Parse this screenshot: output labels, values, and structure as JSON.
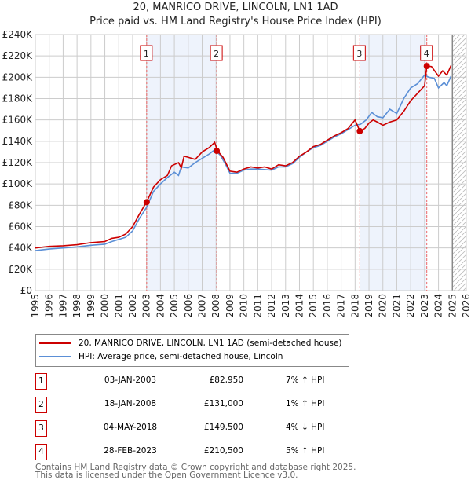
{
  "chart_data": {
    "type": "line",
    "title": "20, MANRICO DRIVE, LINCOLN, LN1 1AD",
    "subtitle": "Price paid vs. HM Land Registry's House Price Index (HPI)",
    "xlim": [
      1995,
      2026
    ],
    "ylim": [
      0,
      240000
    ],
    "x_ticks": [
      "1995",
      "1996",
      "1997",
      "1998",
      "1999",
      "2000",
      "2001",
      "2002",
      "2003",
      "2004",
      "2005",
      "2006",
      "2007",
      "2008",
      "2009",
      "2010",
      "2011",
      "2012",
      "2013",
      "2014",
      "2015",
      "2016",
      "2017",
      "2018",
      "2019",
      "2020",
      "2021",
      "2022",
      "2023",
      "2024",
      "2025",
      "2026"
    ],
    "y_ticks": [
      {
        "v": 0,
        "label": "£0"
      },
      {
        "v": 20000,
        "label": "£20K"
      },
      {
        "v": 40000,
        "label": "£40K"
      },
      {
        "v": 60000,
        "label": "£60K"
      },
      {
        "v": 80000,
        "label": "£80K"
      },
      {
        "v": 100000,
        "label": "£100K"
      },
      {
        "v": 120000,
        "label": "£120K"
      },
      {
        "v": 140000,
        "label": "£140K"
      },
      {
        "v": 160000,
        "label": "£160K"
      },
      {
        "v": 180000,
        "label": "£180K"
      },
      {
        "v": 200000,
        "label": "£200K"
      },
      {
        "v": 220000,
        "label": "£220K"
      },
      {
        "v": 240000,
        "label": "£240K"
      }
    ],
    "grid": true,
    "shaded_ranges": [
      [
        2003.01,
        2008.05
      ],
      [
        2018.34,
        2023.16
      ]
    ],
    "forecast_hatch_from": 2025,
    "series": [
      {
        "name": "20, MANRICO DRIVE, LINCOLN, LN1 1AD (semi-detached house)",
        "color": "#cc0000",
        "x": [
          1995,
          1996,
          1997,
          1998,
          1999,
          2000,
          2000.5,
          2001,
          2001.5,
          2002,
          2002.5,
          2003,
          2003.5,
          2004,
          2004.5,
          2004.8,
          2005.3,
          2005.5,
          2005.7,
          2006,
          2006.5,
          2007,
          2007.5,
          2007.9,
          2008.1,
          2008.5,
          2009,
          2009.5,
          2010,
          2010.5,
          2011,
          2011.5,
          2012,
          2012.5,
          2013,
          2013.5,
          2014,
          2014.5,
          2015,
          2015.5,
          2016,
          2016.5,
          2017,
          2017.5,
          2018,
          2018.34,
          2018.7,
          2019,
          2019.3,
          2019.6,
          2020,
          2020.5,
          2021,
          2021.5,
          2022,
          2022.5,
          2023,
          2023.16,
          2023.5,
          2024,
          2024.3,
          2024.6,
          2024.9
        ],
        "y": [
          40000,
          41500,
          42000,
          43000,
          45000,
          46000,
          49000,
          50000,
          53000,
          60000,
          72000,
          83000,
          97000,
          104000,
          108000,
          117000,
          120000,
          115000,
          126000,
          125000,
          123000,
          130000,
          134000,
          139000,
          131000,
          125000,
          112000,
          111000,
          114000,
          116000,
          115000,
          116000,
          114000,
          118000,
          117000,
          120000,
          126000,
          130000,
          135000,
          137000,
          141000,
          145000,
          148000,
          152000,
          160000,
          149500,
          152000,
          157000,
          160000,
          158000,
          155000,
          158000,
          160000,
          168000,
          178000,
          185000,
          192000,
          210500,
          210000,
          201000,
          206000,
          202000,
          211000
        ]
      },
      {
        "name": "HPI: Average price, semi-detached house, Lincoln",
        "color": "#5b8fd6",
        "x": [
          1995,
          1996,
          1997,
          1998,
          1999,
          2000,
          2000.5,
          2001,
          2001.5,
          2002,
          2002.5,
          2003,
          2003.5,
          2004,
          2004.5,
          2005,
          2005.3,
          2005.5,
          2006,
          2006.5,
          2007,
          2007.5,
          2007.9,
          2008.3,
          2008.7,
          2009,
          2009.5,
          2010,
          2010.5,
          2011,
          2012,
          2012.5,
          2013,
          2013.5,
          2014,
          2014.5,
          2015,
          2015.5,
          2016,
          2016.5,
          2017,
          2017.5,
          2018,
          2018.4,
          2018.8,
          2019.2,
          2019.6,
          2020,
          2020.5,
          2021,
          2021.5,
          2022,
          2022.5,
          2023,
          2023.3,
          2023.7,
          2024,
          2024.4,
          2024.6,
          2024.9
        ],
        "y": [
          37500,
          39000,
          40000,
          41000,
          42500,
          43500,
          46000,
          48000,
          50000,
          56000,
          68000,
          78000,
          93000,
          100000,
          106000,
          111000,
          108000,
          116000,
          115000,
          120000,
          124000,
          128000,
          132000,
          127000,
          118000,
          110000,
          110000,
          113000,
          114000,
          114000,
          113000,
          116000,
          116000,
          119000,
          125000,
          130000,
          134000,
          136000,
          140000,
          144000,
          147000,
          151000,
          155000,
          156000,
          160000,
          167000,
          163000,
          162000,
          170000,
          166000,
          180000,
          190000,
          194000,
          202000,
          200000,
          199000,
          190000,
          195000,
          192000,
          201000
        ]
      }
    ],
    "sales": [
      {
        "num": "1",
        "x": 2003.01,
        "y": 82950
      },
      {
        "num": "2",
        "x": 2008.05,
        "y": 131000
      },
      {
        "num": "3",
        "x": 2018.34,
        "y": 149500
      },
      {
        "num": "4",
        "x": 2023.16,
        "y": 210500
      }
    ]
  },
  "legend": {
    "red": "20, MANRICO DRIVE, LINCOLN, LN1 1AD (semi-detached house)",
    "blue": "HPI: Average price, semi-detached house, Lincoln"
  },
  "table": [
    {
      "num": "1",
      "date": "03-JAN-2003",
      "price": "£82,950",
      "hpi": "7% ↑ HPI"
    },
    {
      "num": "2",
      "date": "18-JAN-2008",
      "price": "£131,000",
      "hpi": "1% ↑ HPI"
    },
    {
      "num": "3",
      "date": "04-MAY-2018",
      "price": "£149,500",
      "hpi": "4% ↓ HPI"
    },
    {
      "num": "4",
      "date": "28-FEB-2023",
      "price": "£210,500",
      "hpi": "5% ↑ HPI"
    }
  ],
  "footer": {
    "line1": "Contains HM Land Registry data © Crown copyright and database right 2025.",
    "line2": "This data is licensed under the Open Government Licence v3.0."
  }
}
